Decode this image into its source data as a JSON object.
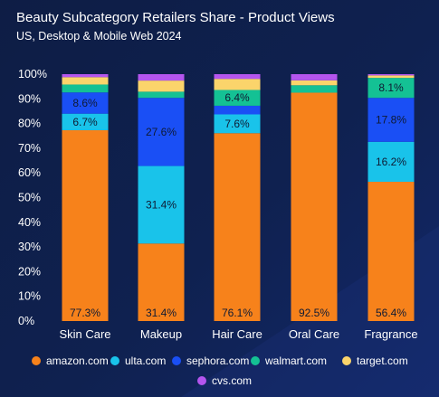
{
  "header": {
    "title": "Beauty Subcategory Retailers Share - Product Views",
    "subtitle": "US, Desktop & Mobile Web 2024"
  },
  "colors": {
    "background": "#0f2150",
    "amazon": "#f7821b",
    "ulta": "#19c3ea",
    "sephora": "#1a4ff5",
    "walmart": "#14c194",
    "target": "#fbd46b",
    "cvs": "#b455ee"
  },
  "chart_data": {
    "type": "bar",
    "stacked": true,
    "categories": [
      "Skin Care",
      "Makeup",
      "Hair Care",
      "Oral Care",
      "Fragrance"
    ],
    "series": [
      {
        "name": "amazon.com",
        "color": "#f7821b",
        "values": [
          77.3,
          31.4,
          76.1,
          92.5,
          56.4
        ]
      },
      {
        "name": "ulta.com",
        "color": "#19c3ea",
        "values": [
          6.7,
          31.4,
          7.6,
          0,
          16.2
        ]
      },
      {
        "name": "sephora.com",
        "color": "#1a4ff5",
        "values": [
          8.6,
          27.6,
          3.5,
          0,
          17.8
        ]
      },
      {
        "name": "walmart.com",
        "color": "#14c194",
        "values": [
          3.2,
          2.5,
          6.4,
          3.0,
          8.1
        ]
      },
      {
        "name": "target.com",
        "color": "#fbd46b",
        "values": [
          3.0,
          4.5,
          4.5,
          2.0,
          1.0
        ]
      },
      {
        "name": "cvs.com",
        "color": "#b455ee",
        "values": [
          1.2,
          2.6,
          1.9,
          2.5,
          0.5
        ]
      }
    ],
    "data_labels": {
      "amazon.com": [
        "77.3%",
        "31.4%",
        "76.1%",
        "92.5%",
        "56.4%"
      ],
      "ulta.com": [
        "6.7%",
        "31.4%",
        "7.6%",
        "",
        "16.2%"
      ],
      "sephora.com": [
        "8.6%",
        "27.6%",
        "",
        "",
        "17.8%"
      ],
      "walmart.com": [
        "",
        "",
        "6.4%",
        "",
        "8.1%"
      ]
    },
    "y_ticks": [
      "0%",
      "10%",
      "20%",
      "30%",
      "40%",
      "50%",
      "60%",
      "70%",
      "80%",
      "90%",
      "100%"
    ],
    "ylim": [
      0,
      100
    ],
    "legend_position": "bottom",
    "grid": false
  }
}
